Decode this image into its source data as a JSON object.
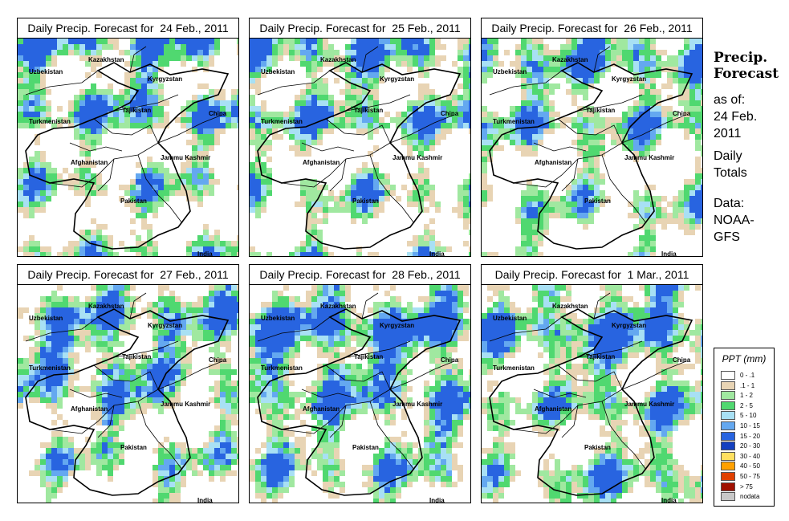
{
  "colors": {
    "very_light": "#e8d4b4",
    "light_green": "#a0e8a0",
    "green": "#50d870",
    "light_blue": "#a8e0f4",
    "blue": "#64a8f0",
    "dark_blue": "#2864e0"
  },
  "maps": [
    {
      "title": "Daily Precip. Forecast for  24 Feb., 2011"
    },
    {
      "title": "Daily Precip. Forecast for  25 Feb., 2011"
    },
    {
      "title": "Daily Precip. Forecast for  26 Feb., 2011"
    },
    {
      "title": "Daily Precip. Forecast for  27 Feb., 2011"
    },
    {
      "title": "Daily Precip. Forecast for  28 Feb., 2011"
    },
    {
      "title": "Daily Precip. Forecast for  1 Mar., 2011"
    }
  ],
  "labels": {
    "kazakhstan": "Kazakhstan",
    "uzbekistan": "Uzbekistan",
    "kyrgyzstan": "Kyrgyzstan",
    "tajikistan": "Tajikistan",
    "turkmenistan": "Turkmenistan",
    "china": "China",
    "afghanistan": "Afghanistan",
    "jammu": "Jammu Kashmir",
    "pakistan": "Pakistan",
    "india": "India"
  },
  "sidebar": {
    "title_line1": "Precip.",
    "title_line2": "Forecast",
    "asof": "as of:",
    "date1": "24 Feb.",
    "date2": "2011",
    "daily": "Daily",
    "totals": "Totals",
    "data": "Data:",
    "src1": "NOAA-",
    "src2": "GFS"
  },
  "legend": {
    "title": "PPT (mm)",
    "items": [
      {
        "label": "0 - .1",
        "color": "#ffffff"
      },
      {
        "label": ".1 - 1",
        "color": "#e8d4b4"
      },
      {
        "label": "1 - 2",
        "color": "#a0e8a0"
      },
      {
        "label": "2 - 5",
        "color": "#50d870"
      },
      {
        "label": "5 - 10",
        "color": "#a8e0f4"
      },
      {
        "label": "10 - 15",
        "color": "#64a8f0"
      },
      {
        "label": "15 - 20",
        "color": "#2864e0"
      },
      {
        "label": "20 - 30",
        "color": "#1440c0"
      },
      {
        "label": "30 - 40",
        "color": "#ffe060"
      },
      {
        "label": "40 - 50",
        "color": "#ffa000"
      },
      {
        "label": "50 - 75",
        "color": "#e04000"
      },
      {
        "label": "> 75",
        "color": "#a01000"
      },
      {
        "label": "nodata",
        "color": "#c8c8c8"
      }
    ]
  }
}
